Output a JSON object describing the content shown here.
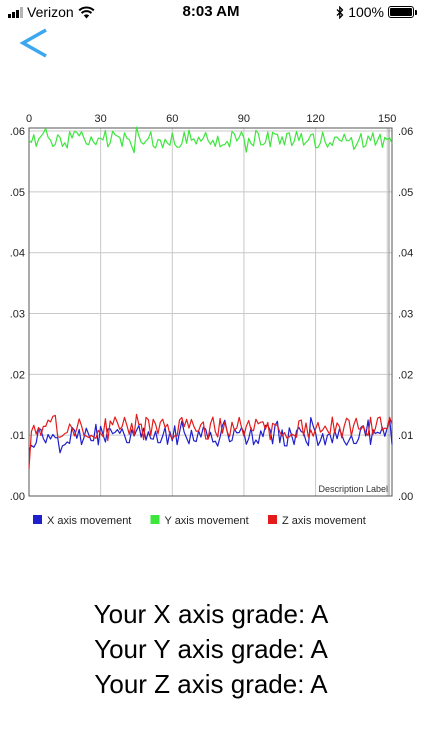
{
  "status_bar": {
    "carrier": "Verizon",
    "time": "8:03 AM",
    "battery": "100%",
    "battery_level": 1.0,
    "icons": [
      "signal-icon",
      "wifi-icon",
      "bluetooth-icon",
      "battery-icon"
    ]
  },
  "nav": {
    "back_icon": "chevron-left-icon",
    "back_color": "#3aa7f0"
  },
  "chart_data": {
    "type": "line",
    "x_ticks": [
      "0",
      "30",
      "60",
      "90",
      "120",
      "150"
    ],
    "y_ticks": [
      ".00",
      ".01",
      ".02",
      ".03",
      ".04",
      ".05",
      ".06"
    ],
    "xlim": [
      0,
      152
    ],
    "ylim": [
      0,
      0.0605
    ],
    "grid": true,
    "legend_position": "bottom-left",
    "description_label": "Description Label",
    "series": [
      {
        "name": "X axis movement",
        "color": "#1f1fcc",
        "mean": 0.0099,
        "amplitude": 0.0017,
        "start": 0.0075
      },
      {
        "name": "Y axis movement",
        "color": "#3ce63c",
        "mean": 0.0586,
        "amplitude": 0.0014,
        "start": 0.0585
      },
      {
        "name": "Z axis movement",
        "color": "#e41b1b",
        "mean": 0.0111,
        "amplitude": 0.002,
        "start": 0.0045
      }
    ]
  },
  "grades": [
    "Your X axis grade: A",
    "Your Y axis grade: A",
    "Your Z axis grade: A"
  ]
}
